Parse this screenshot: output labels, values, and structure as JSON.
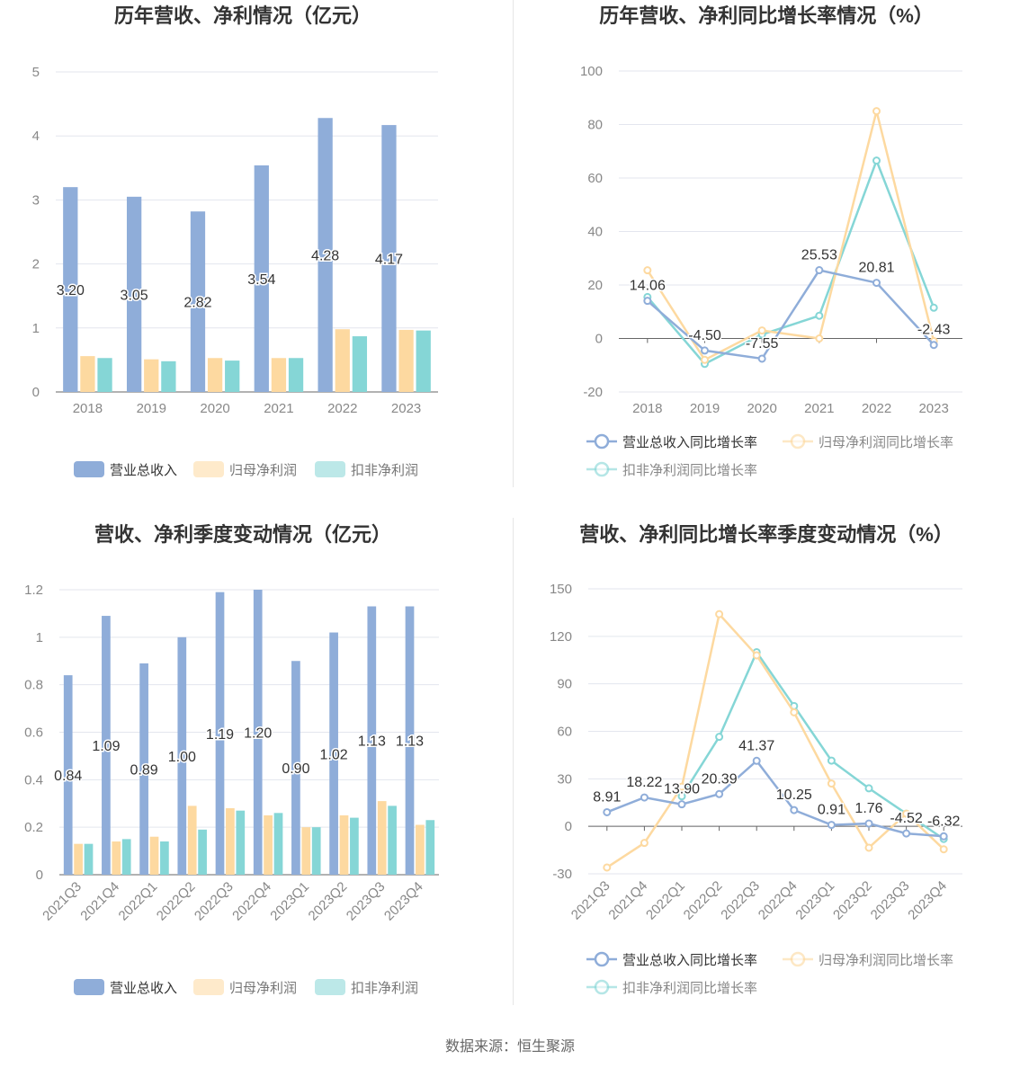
{
  "source": "数据来源：恒生聚源",
  "colors": {
    "revenue": "#8fadd9",
    "parent": "#fdd9a0",
    "deducted": "#85d6d6",
    "grid": "#e3e6ee",
    "axis": "#888888",
    "title": "#333333"
  },
  "legend_labels": {
    "bar": [
      "营业总收入",
      "归母净利润",
      "扣非净利润"
    ],
    "line": [
      "营业总收入同比增长率",
      "归母净利润同比增长率",
      "扣非净利润同比增长率"
    ]
  },
  "chart_data": [
    {
      "id": "annual-bar",
      "type": "bar",
      "title": "历年营收、净利情况（亿元）",
      "categories": [
        "2018",
        "2019",
        "2020",
        "2021",
        "2022",
        "2023"
      ],
      "ylim": [
        0,
        5
      ],
      "yticks": [
        0,
        1,
        2,
        3,
        4,
        5
      ],
      "series": [
        {
          "name": "营业总收入",
          "values": [
            3.2,
            3.05,
            2.82,
            3.54,
            4.28,
            4.17
          ],
          "labeled": true
        },
        {
          "name": "归母净利润",
          "values": [
            0.56,
            0.51,
            0.53,
            0.53,
            0.98,
            0.97
          ]
        },
        {
          "name": "扣非净利润",
          "values": [
            0.53,
            0.48,
            0.49,
            0.53,
            0.87,
            0.96
          ]
        }
      ],
      "labels": [
        "3.20",
        "3.05",
        "2.82",
        "3.54",
        "4.28",
        "4.17"
      ],
      "grid": true,
      "legend": "bottom"
    },
    {
      "id": "annual-line",
      "type": "line",
      "title": "历年营收、净利同比增长率情况（%）",
      "categories": [
        "2018",
        "2019",
        "2020",
        "2021",
        "2022",
        "2023"
      ],
      "ylim": [
        -20,
        100
      ],
      "yticks": [
        -20,
        0,
        20,
        40,
        60,
        80,
        100
      ],
      "series": [
        {
          "name": "营业总收入同比增长率",
          "values": [
            14.06,
            -4.5,
            -7.55,
            25.53,
            20.81,
            -2.43
          ],
          "labeled": true
        },
        {
          "name": "归母净利润同比增长率",
          "values": [
            25.5,
            -8.0,
            3.0,
            0.0,
            85.0,
            -1.0
          ]
        },
        {
          "name": "扣非净利润同比增长率",
          "values": [
            15.5,
            -9.5,
            1.5,
            8.5,
            66.5,
            11.5
          ]
        }
      ],
      "labels": [
        "14.06",
        "-4.50",
        "-7.55",
        "25.53",
        "20.81",
        "-2.43"
      ],
      "grid": true,
      "legend": "bottom"
    },
    {
      "id": "quarter-bar",
      "type": "bar",
      "title": "营收、净利季度变动情况（亿元）",
      "categories": [
        "2021Q3",
        "2021Q4",
        "2022Q1",
        "2022Q2",
        "2022Q3",
        "2022Q4",
        "2023Q1",
        "2023Q2",
        "2023Q3",
        "2023Q4"
      ],
      "ylim": [
        0,
        1.2
      ],
      "yticks": [
        0,
        0.2,
        0.4,
        0.6,
        0.8,
        1,
        1.2
      ],
      "series": [
        {
          "name": "营业总收入",
          "values": [
            0.84,
            1.09,
            0.89,
            1.0,
            1.19,
            1.2,
            0.9,
            1.02,
            1.13,
            1.13
          ],
          "labeled": true
        },
        {
          "name": "归母净利润",
          "values": [
            0.13,
            0.14,
            0.16,
            0.29,
            0.28,
            0.25,
            0.2,
            0.25,
            0.31,
            0.21
          ]
        },
        {
          "name": "扣非净利润",
          "values": [
            0.13,
            0.15,
            0.14,
            0.19,
            0.27,
            0.26,
            0.2,
            0.24,
            0.29,
            0.23
          ]
        }
      ],
      "labels": [
        "0.84",
        "1.09",
        "0.89",
        "1.00",
        "1.19",
        "1.20",
        "0.90",
        "1.02",
        "1.13",
        "1.13"
      ],
      "grid": true,
      "legend": "bottom"
    },
    {
      "id": "quarter-line",
      "type": "line",
      "title": "营收、净利同比增长率季度变动情况（%）",
      "categories": [
        "2021Q3",
        "2021Q4",
        "2022Q1",
        "2022Q2",
        "2022Q3",
        "2022Q4",
        "2023Q1",
        "2023Q2",
        "2023Q3",
        "2023Q4"
      ],
      "ylim": [
        -30,
        150
      ],
      "yticks": [
        -30,
        0,
        30,
        60,
        90,
        120,
        150
      ],
      "series": [
        {
          "name": "营业总收入同比增长率",
          "values": [
            8.91,
            18.22,
            13.9,
            20.39,
            41.37,
            10.25,
            0.91,
            1.76,
            -4.52,
            -6.32
          ],
          "labeled": true
        },
        {
          "name": "归母净利润同比增长率",
          "values": [
            -26.0,
            -10.5,
            25.0,
            134.0,
            108.0,
            72.0,
            27.0,
            -13.5,
            8.0,
            -14.5
          ]
        },
        {
          "name": "扣非净利润同比增长率",
          "values": [
            null,
            null,
            19.0,
            56.5,
            110.0,
            76.0,
            41.5,
            24.0,
            8.0,
            -8.0
          ]
        }
      ],
      "labels": [
        "8.91",
        "18.22",
        "13.90",
        "20.39",
        "41.37",
        "10.25",
        "0.91",
        "1.76",
        "-4.52",
        "-6.32"
      ],
      "grid": true,
      "legend": "bottom"
    }
  ]
}
